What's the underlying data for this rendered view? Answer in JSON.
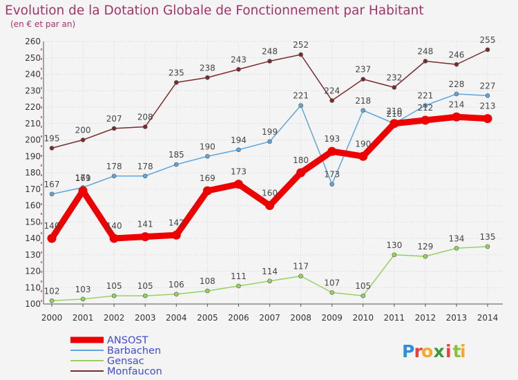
{
  "chart_data": {
    "type": "line",
    "title": "Evolution de la Dotation Globale de Fonctionnement par Habitant",
    "subtitle": "(en € et par an)",
    "xlabel": "",
    "ylabel": "",
    "categories": [
      "2000",
      "2001",
      "2002",
      "2003",
      "2004",
      "2005",
      "2006",
      "2007",
      "2008",
      "2009",
      "2010",
      "2011",
      "2012",
      "2013",
      "2014"
    ],
    "ylim": [
      100,
      260
    ],
    "yticks": [
      100,
      110,
      120,
      130,
      140,
      150,
      160,
      170,
      180,
      190,
      200,
      210,
      220,
      230,
      240,
      250,
      260
    ],
    "grid": true,
    "legend_position": "bottom-left",
    "series": [
      {
        "name": "ANSOST",
        "color": "#ee0000",
        "values": [
          140,
          169,
          140,
          141,
          142,
          169,
          173,
          160,
          180,
          193,
          190,
          210,
          212,
          214,
          213
        ]
      },
      {
        "name": "Barbachen",
        "color": "#5ea5dc",
        "values": [
          167,
          171,
          178,
          178,
          185,
          190,
          194,
          199,
          221,
          173,
          218,
          210,
          221,
          228,
          227
        ]
      },
      {
        "name": "Gensac",
        "color": "#95d160",
        "values": [
          102,
          103,
          105,
          105,
          106,
          108,
          111,
          114,
          117,
          107,
          105,
          130,
          129,
          134,
          135
        ]
      },
      {
        "name": "Monfaucon",
        "color": "#7a2a2a",
        "values": [
          195,
          200,
          207,
          208,
          235,
          238,
          243,
          248,
          252,
          224,
          237,
          232,
          248,
          246,
          255
        ]
      }
    ]
  },
  "brand": {
    "letters": [
      "P",
      "r",
      "o",
      "x",
      "i",
      "t",
      "i"
    ],
    "colors": [
      "#2e8ede",
      "#e8433a",
      "#f4a82b",
      "#3a9a3a",
      "#e8433a",
      "#8ac23e",
      "#f4a82b"
    ]
  }
}
